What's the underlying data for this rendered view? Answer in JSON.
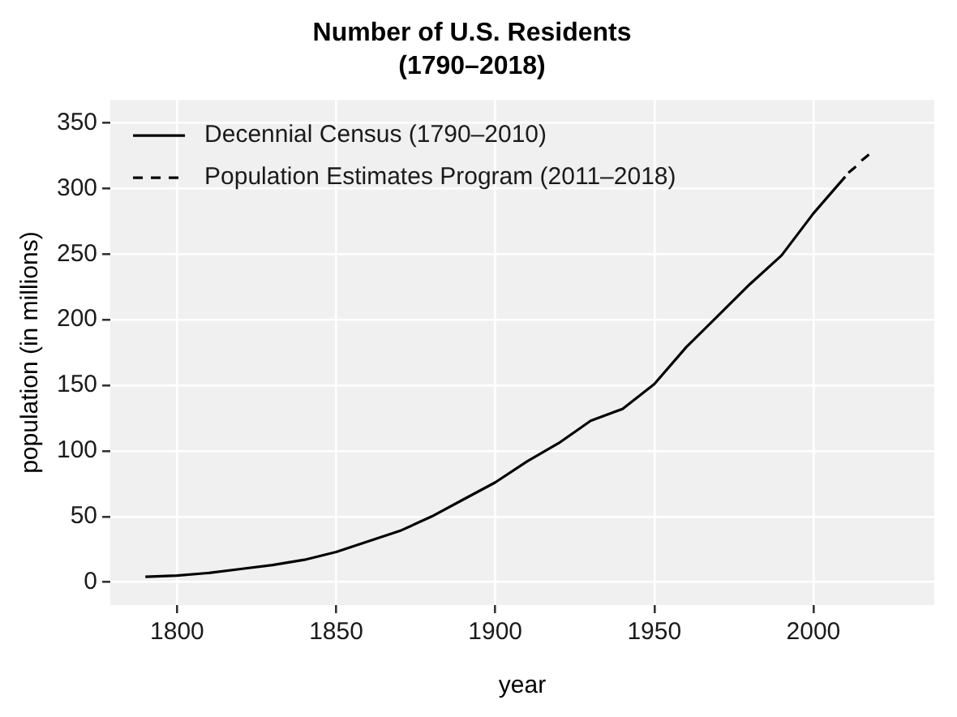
{
  "chart_data": {
    "type": "line",
    "title": "Number of U.S. Residents\n(1790–2018)",
    "xlabel": "year",
    "ylabel": "population (in millions)",
    "xlim": [
      1779,
      2038
    ],
    "xticks": [
      1800,
      1850,
      1900,
      1950,
      2000
    ],
    "ylim": [
      -17.5,
      367.5
    ],
    "yticks": [
      0,
      50,
      100,
      150,
      200,
      250,
      300,
      350
    ],
    "grid": true,
    "legend": "top left",
    "marker": "none",
    "series": [
      {
        "name": "Decennial Census (1790–2010)",
        "color": "#000000",
        "line_style": "solid",
        "x": [
          1790,
          1800,
          1810,
          1820,
          1830,
          1840,
          1850,
          1860,
          1870,
          1880,
          1890,
          1900,
          1910,
          1920,
          1930,
          1940,
          1950,
          1960,
          1970,
          1980,
          1990,
          2000,
          2010
        ],
        "values": [
          4,
          5,
          7,
          10,
          13,
          17,
          23,
          31,
          39,
          50,
          63,
          76,
          92,
          106,
          123,
          132,
          151,
          179,
          203,
          227,
          249,
          281,
          309
        ]
      },
      {
        "name": "Population Estimates Program (2011–2018)",
        "color": "#000000",
        "line_style": "dashed",
        "x": [
          2011,
          2012,
          2013,
          2014,
          2015,
          2016,
          2017,
          2018
        ],
        "values": [
          312,
          314,
          316,
          318,
          321,
          323,
          325,
          327
        ]
      }
    ]
  }
}
